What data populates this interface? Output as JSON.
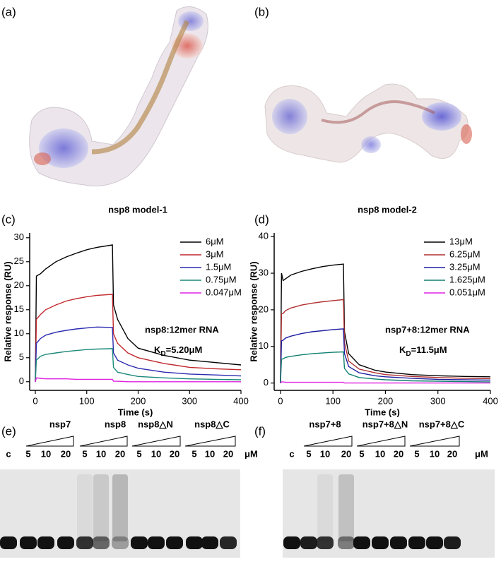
{
  "panels": {
    "a": "(a)",
    "b": "(b)",
    "c": "(c)",
    "d": "(d)",
    "e": "(e)",
    "f": "(f)"
  },
  "models": {
    "model_1": "nsp8 model-1",
    "model_2": "nsp8 model-2"
  },
  "chart_data": [
    {
      "type": "line",
      "xlabel": "Time (s)",
      "ylabel": "Relative response (RU)",
      "x": [
        0,
        2,
        10,
        20,
        40,
        60,
        80,
        100,
        120,
        150,
        152,
        160,
        180,
        200,
        250,
        300,
        350,
        400
      ],
      "xlim": [
        -11,
        400
      ],
      "ylim": [
        -1.8,
        31
      ],
      "xticks": [
        0,
        100,
        200,
        300,
        400
      ],
      "yticks": [
        0,
        5,
        10,
        15,
        20,
        25,
        30
      ],
      "legend": "upper right",
      "series": [
        {
          "name": "6μM",
          "color": "#000000",
          "values": [
            0,
            22,
            22.5,
            23.5,
            25,
            26,
            26.8,
            27.5,
            28,
            28.5,
            16,
            13,
            9,
            7,
            5.5,
            4.5,
            4,
            3.5
          ]
        },
        {
          "name": "3μM",
          "color": "#c0272d",
          "values": [
            0,
            13,
            14,
            15,
            16,
            16.8,
            17.3,
            17.7,
            18,
            18.2,
            10,
            8,
            6,
            5,
            3.8,
            3,
            2.7,
            2.5
          ]
        },
        {
          "name": "1.5μM",
          "color": "#2a2ab0",
          "values": [
            0,
            8,
            9,
            9.7,
            10.3,
            10.7,
            11,
            11.2,
            11.4,
            11.3,
            6,
            4.5,
            3.5,
            2.8,
            2,
            1.6,
            1.4,
            1.2
          ]
        },
        {
          "name": "0.75μM",
          "color": "#1a8a7a",
          "values": [
            0,
            4.5,
            5.3,
            5.7,
            6,
            6.3,
            6.5,
            6.7,
            6.8,
            6.9,
            3,
            2,
            1.5,
            1.1,
            0.8,
            0.6,
            0.5,
            0.4
          ]
        },
        {
          "name": "0.047μM",
          "color": "#e020e0",
          "values": [
            0,
            0.8,
            0.7,
            0.6,
            0.6,
            0.6,
            0.5,
            0.5,
            0.5,
            0.5,
            0.1,
            0.1,
            0,
            0,
            0,
            0,
            0,
            0
          ]
        }
      ],
      "annotation": "nsp8:12mer RNA",
      "kd": {
        "main": "K",
        "sub": "D",
        "value": "=5.20μM"
      }
    },
    {
      "type": "line",
      "xlabel": "Time (s)",
      "ylabel": "Relative response (RU)",
      "x": [
        0,
        2,
        5,
        10,
        20,
        40,
        60,
        80,
        100,
        120,
        122,
        130,
        150,
        180,
        200,
        250,
        300,
        350,
        400
      ],
      "xlim": [
        -12,
        400
      ],
      "ylim": [
        -2,
        41
      ],
      "xticks": [
        0,
        100,
        200,
        300,
        400
      ],
      "yticks": [
        0,
        10,
        20,
        30,
        40
      ],
      "legend": "upper right",
      "series": [
        {
          "name": "13μM",
          "color": "#000000",
          "values": [
            0,
            30,
            28,
            28.5,
            29.5,
            30.5,
            31.2,
            31.8,
            32.2,
            32.5,
            14,
            8,
            5,
            3.5,
            3,
            2.3,
            2,
            1.8,
            1.7
          ]
        },
        {
          "name": "6.25μM",
          "color": "#b03030",
          "values": [
            0,
            19,
            19,
            19.8,
            20.5,
            21.3,
            21.8,
            22.2,
            22.5,
            22.8,
            11,
            6,
            3.8,
            2.8,
            2.3,
            1.8,
            1.5,
            1.3,
            1.2
          ]
        },
        {
          "name": "3.25μM",
          "color": "#2020a0",
          "values": [
            0,
            11.5,
            11.7,
            12.3,
            12.8,
            13.5,
            14,
            14.3,
            14.6,
            14.8,
            8,
            4.5,
            2.8,
            2,
            1.7,
            1.3,
            1,
            0.9,
            0.8
          ]
        },
        {
          "name": "1.625μM",
          "color": "#108070",
          "values": [
            0,
            6.5,
            6.6,
            7,
            7.3,
            7.7,
            8,
            8.2,
            8.4,
            8.5,
            4,
            2.5,
            1.5,
            1.1,
            0.9,
            0.6,
            0.5,
            0.4,
            0.3
          ]
        },
        {
          "name": "0.051μM",
          "color": "#e020e0",
          "values": [
            0,
            0.3,
            0.3,
            0.2,
            0.2,
            0.2,
            0.2,
            0.2,
            0.2,
            0.2,
            0,
            0,
            0,
            0,
            0,
            0,
            0,
            0,
            0
          ]
        }
      ],
      "annotation": "nsp7+8:12mer RNA",
      "kd": {
        "main": "K",
        "sub": "D",
        "value": "=11.5μM"
      }
    }
  ],
  "gels": [
    {
      "groups": [
        "nsp7",
        "nsp8",
        "nsp8△N",
        "nsp8△C"
      ],
      "lanes": [
        "c",
        "5",
        "10",
        "20",
        "5",
        "10",
        "20",
        "5",
        "10",
        "20",
        "5",
        "10",
        "20"
      ],
      "unit": "μM"
    },
    {
      "groups": [
        "nsp7+8",
        "nsp7+8△N",
        "nsp7+8△C"
      ],
      "lanes": [
        "c",
        "5",
        "10",
        "20",
        "5",
        "10",
        "20",
        "5",
        "10",
        "20"
      ],
      "unit": "μM"
    }
  ]
}
